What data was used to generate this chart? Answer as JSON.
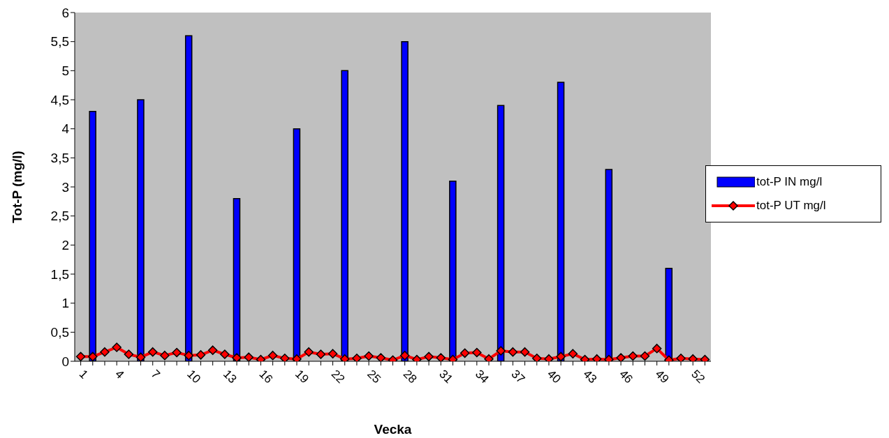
{
  "chart_data": {
    "type": "bar",
    "xlabel": "Vecka",
    "ylabel": "Tot-P (mg/l)",
    "categories": [
      "1",
      null,
      null,
      "4",
      null,
      null,
      "7",
      null,
      null,
      "10",
      null,
      null,
      "13",
      null,
      null,
      "16",
      null,
      null,
      "19",
      null,
      null,
      "22",
      null,
      null,
      "25",
      null,
      null,
      "28",
      null,
      null,
      "31",
      null,
      null,
      "34",
      null,
      null,
      "37",
      null,
      null,
      "40",
      null,
      null,
      "43",
      null,
      null,
      "46",
      null,
      null,
      "49",
      null,
      null,
      "52",
      null
    ],
    "series": [
      {
        "name": "tot-P IN mg/l",
        "color": "#0000ff",
        "values": [
          null,
          4.3,
          null,
          null,
          null,
          4.5,
          null,
          null,
          null,
          5.6,
          null,
          null,
          null,
          2.8,
          null,
          null,
          null,
          null,
          4.0,
          null,
          null,
          null,
          5.0,
          null,
          null,
          null,
          null,
          5.5,
          null,
          null,
          null,
          3.1,
          null,
          null,
          null,
          4.4,
          null,
          null,
          null,
          null,
          4.8,
          null,
          null,
          null,
          3.3,
          null,
          null,
          null,
          null,
          1.6,
          null,
          null,
          null
        ]
      },
      {
        "name": "tot-P UT mg/l",
        "type": "line",
        "color": "#ff0000",
        "marker": "diamond",
        "values": [
          0.08,
          0.08,
          0.16,
          0.24,
          0.12,
          0.07,
          0.16,
          0.1,
          0.15,
          0.1,
          0.11,
          0.19,
          0.12,
          0.06,
          0.07,
          0.03,
          0.1,
          0.05,
          0.04,
          0.16,
          0.12,
          0.13,
          0.04,
          0.05,
          0.09,
          0.06,
          0.02,
          0.1,
          0.03,
          0.08,
          0.06,
          0.03,
          0.14,
          0.15,
          0.04,
          0.18,
          0.16,
          0.16,
          0.05,
          0.04,
          0.08,
          0.13,
          0.03,
          0.04,
          0.03,
          0.06,
          0.09,
          0.09,
          0.22,
          0.02,
          0.05,
          0.04,
          0.03
        ]
      }
    ],
    "ylim": [
      0,
      6
    ],
    "yticks": [
      0,
      {
        "value": 0.5,
        "label": "0,5"
      },
      1,
      {
        "value": 1.5,
        "label": "1,5"
      },
      2,
      {
        "value": 2.5,
        "label": "2,5"
      },
      3,
      {
        "value": 3.5,
        "label": "3,5"
      },
      4,
      {
        "value": 4.5,
        "label": "4,5"
      },
      5,
      {
        "value": 5.5,
        "label": "5,5"
      },
      6
    ],
    "grid": false,
    "legend": "right"
  }
}
